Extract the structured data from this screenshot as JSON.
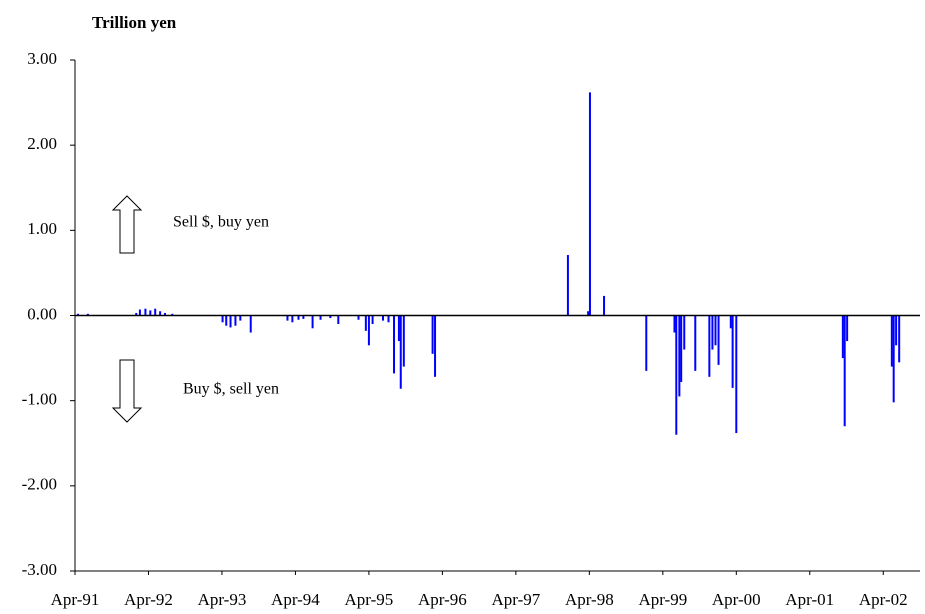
{
  "chart_data": {
    "type": "bar",
    "unit_label": "Trillion yen",
    "annotations": [
      "Sell $, buy yen",
      "Buy $, sell yen"
    ],
    "color": "#0000ff",
    "x": [
      0.5,
      2.1,
      10.0,
      10.6,
      11.5,
      12.3,
      13.1,
      13.9,
      14.7,
      15.9,
      24.1,
      24.7,
      25.4,
      26.2,
      27.0,
      28.7,
      34.7,
      35.5,
      36.5,
      37.3,
      38.8,
      40.1,
      41.7,
      43.0,
      46.3,
      47.5,
      48.0,
      48.6,
      50.3,
      51.2,
      52.1,
      52.9,
      53.2,
      53.7,
      58.4,
      58.8,
      80.5,
      83.8,
      84.1,
      86.4,
      93.3,
      97.9,
      98.2,
      98.7,
      99.0,
      99.5,
      101.3,
      103.6,
      104.1,
      104.6,
      105.1,
      107.1,
      107.4,
      108.0,
      125.4,
      125.7,
      126.1,
      133.4,
      133.7,
      134.1,
      134.6
    ],
    "values": [
      0.02,
      0.02,
      0.03,
      0.07,
      0.08,
      0.06,
      0.08,
      0.05,
      0.03,
      0.02,
      -0.08,
      -0.12,
      -0.14,
      -0.12,
      -0.06,
      -0.2,
      -0.06,
      -0.08,
      -0.05,
      -0.04,
      -0.15,
      -0.05,
      -0.03,
      -0.1,
      -0.05,
      -0.18,
      -0.35,
      -0.1,
      -0.06,
      -0.08,
      -0.68,
      -0.3,
      -0.86,
      -0.6,
      -0.45,
      -0.72,
      0.71,
      0.05,
      2.62,
      0.23,
      -0.65,
      -0.2,
      -1.4,
      -0.95,
      -0.78,
      -0.4,
      -0.65,
      -0.72,
      -0.4,
      -0.35,
      -0.58,
      -0.15,
      -0.85,
      -1.38,
      -0.5,
      -1.3,
      -0.3,
      -0.6,
      -1.02,
      -0.35,
      -0.55
    ],
    "xlim": [
      0,
      138
    ],
    "xticks": [
      {
        "value": 0,
        "label": "Apr-91"
      },
      {
        "value": 12,
        "label": "Apr-92"
      },
      {
        "value": 24,
        "label": "Apr-93"
      },
      {
        "value": 36,
        "label": "Apr-94"
      },
      {
        "value": 48,
        "label": "Apr-95"
      },
      {
        "value": 60,
        "label": "Apr-96"
      },
      {
        "value": 72,
        "label": "Apr-97"
      },
      {
        "value": 84,
        "label": "Apr-98"
      },
      {
        "value": 96,
        "label": "Apr-99"
      },
      {
        "value": 108,
        "label": "Apr-00"
      },
      {
        "value": 120,
        "label": "Apr-01"
      },
      {
        "value": 132,
        "label": "Apr-02"
      }
    ],
    "ylim": [
      -3,
      3
    ],
    "yticks": [
      {
        "value": 3,
        "label": "3.00"
      },
      {
        "value": 2,
        "label": "2.00"
      },
      {
        "value": 1,
        "label": "1.00"
      },
      {
        "value": 0,
        "label": "0.00"
      },
      {
        "value": -1,
        "label": "-1.00"
      },
      {
        "value": -2,
        "label": "-2.00"
      },
      {
        "value": -3,
        "label": "-3.00"
      }
    ]
  }
}
